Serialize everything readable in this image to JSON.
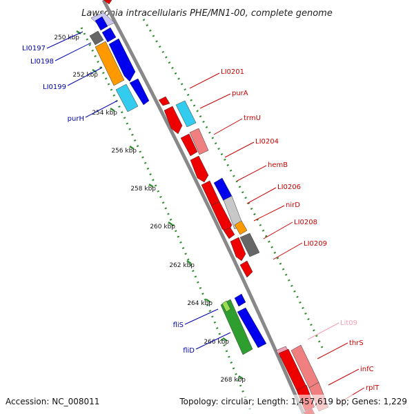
{
  "title": "Lawsonia intracellularis PHE/MN1-00, complete genome",
  "footer": {
    "accession": "Accession: NC_008011",
    "topology": "Topology: circular; Length: 1,457,619 bp; Genes: 1,229"
  },
  "colors": {
    "backbone": "#888888",
    "guide": "#2e8b2e",
    "red": "#ee0000",
    "blue": "#0000ee",
    "cyan": "#33ccee",
    "orange": "#ff9900",
    "gray": "#666666",
    "lightgray": "#c8c8c8",
    "pink": "#f08080",
    "green": "#2e9e2e",
    "lightgreen": "#99dd55",
    "lavender": "#c8c8f0",
    "label_red": "#cc0000",
    "label_blue": "#0000aa",
    "label_pink": "#f4a0b4"
  },
  "kbp_ticks": [
    "250 kbp",
    "252 kbp",
    "254 kbp",
    "256 kbp",
    "258 kbp",
    "260 kbp",
    "262 kbp",
    "264 kbp",
    "266 kbp",
    "268 kbp"
  ],
  "genes_left": [
    {
      "name": "LI0197",
      "color": "blue"
    },
    {
      "name": "LI0198",
      "color": "blue"
    },
    {
      "name": "LI0199",
      "color": "blue"
    },
    {
      "name": "purH",
      "color": "blue"
    },
    {
      "name": "fliS",
      "color": "blue"
    },
    {
      "name": "fliD",
      "color": "blue"
    }
  ],
  "genes_right": [
    {
      "name": "LI0201",
      "color": "red"
    },
    {
      "name": "purA",
      "color": "red"
    },
    {
      "name": "trmU",
      "color": "red"
    },
    {
      "name": "LI0204",
      "color": "red"
    },
    {
      "name": "hemB",
      "color": "red"
    },
    {
      "name": "LI0206",
      "color": "red"
    },
    {
      "name": "nirD",
      "color": "red"
    },
    {
      "name": "LI0208",
      "color": "red"
    },
    {
      "name": "LI0209",
      "color": "red"
    },
    {
      "name": "Lit09",
      "color": "pink"
    },
    {
      "name": "thrS",
      "color": "red"
    },
    {
      "name": "infC",
      "color": "red"
    },
    {
      "name": "rplT",
      "color": "red"
    }
  ]
}
